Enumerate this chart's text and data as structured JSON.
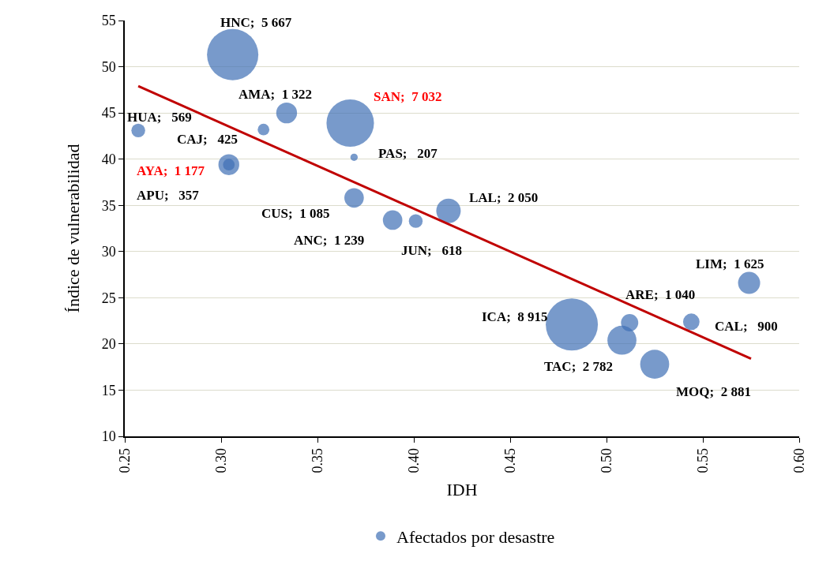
{
  "chart_data": {
    "type": "bubble",
    "xlabel": "IDH",
    "ylabel": "Índice de vulnerabilidad",
    "xlim": [
      0.25,
      0.6
    ],
    "xticks": [
      0.25,
      {
        "value": 0.3,
        "label": "0.30"
      },
      0.35,
      {
        "value": 0.4,
        "label": "0.40"
      },
      0.45,
      {
        "value": 0.5,
        "label": "0.50"
      },
      0.55,
      {
        "value": 0.6,
        "label": "0.60"
      }
    ],
    "ylim": [
      10,
      55
    ],
    "yticks": [
      10,
      15,
      20,
      25,
      30,
      35,
      40,
      45,
      50,
      55
    ],
    "grid": "y",
    "legend": "bottom",
    "marker": "circle",
    "series": [
      {
        "type": "bubble",
        "name": "Afectados por desastre",
        "color": "#3f6fb5",
        "x": [
          0.306,
          0.257,
          0.322,
          0.334,
          0.367,
          0.369,
          0.304,
          0.304,
          0.369,
          0.389,
          0.401,
          0.418,
          0.482,
          0.512,
          0.508,
          0.525,
          0.544,
          0.574
        ],
        "values": [
          51.3,
          43.1,
          43.2,
          45.0,
          43.9,
          40.2,
          39.4,
          39.4,
          35.8,
          33.4,
          33.3,
          34.4,
          22.1,
          22.3,
          20.4,
          17.8,
          22.4,
          26.6
        ],
        "sizes": [
          0.97,
          0.07,
          0.05,
          0.16,
          0.83,
          0.02,
          0.16,
          0.05,
          0.14,
          0.14,
          0.07,
          0.22,
          1,
          0.11,
          0.31,
          0.31,
          0.1,
          0.18
        ]
      },
      {
        "type": "line",
        "marker": "none",
        "color": "#c00000",
        "x": [
          0.257,
          0.575
        ],
        "values": [
          47.9,
          18.4
        ]
      }
    ],
    "annotations": [
      {
        "text": "HNC;  5 667",
        "x": 0.306,
        "y": 51.3
      },
      {
        "text": "HUA;   569",
        "x": 0.257,
        "y": 43.1
      },
      {
        "text": "CAJ;   425",
        "x": 0.322,
        "y": 43.2
      },
      {
        "text": "AMA;  1 322",
        "x": 0.334,
        "y": 45.0
      },
      {
        "text": "SAN;  7 032",
        "x": 0.367,
        "y": 43.9
      },
      {
        "text": "PAS;   207",
        "x": 0.369,
        "y": 40.2
      },
      {
        "text": "AYA;  1 177",
        "x": 0.304,
        "y": 39.4
      },
      {
        "text": "APU;   357",
        "x": 0.304,
        "y": 39.4
      },
      {
        "text": "CUS;  1 085",
        "x": 0.369,
        "y": 35.8
      },
      {
        "text": "ANC;  1 239",
        "x": 0.389,
        "y": 33.4
      },
      {
        "text": "JUN;   618",
        "x": 0.401,
        "y": 33.3
      },
      {
        "text": "LAL;  2 050",
        "x": 0.418,
        "y": 34.4
      },
      {
        "text": "ICA;  8 915",
        "x": 0.482,
        "y": 22.1
      },
      {
        "text": "ARE;  1 040",
        "x": 0.512,
        "y": 22.3
      },
      {
        "text": "TAC;  2 782",
        "x": 0.508,
        "y": 20.4
      },
      {
        "text": "MOQ;  2 881",
        "x": 0.525,
        "y": 17.8
      },
      {
        "text": "CAL;   900",
        "x": 0.544,
        "y": 22.4
      },
      {
        "text": "LIM;  1 625",
        "x": 0.574,
        "y": 26.6
      }
    ]
  }
}
